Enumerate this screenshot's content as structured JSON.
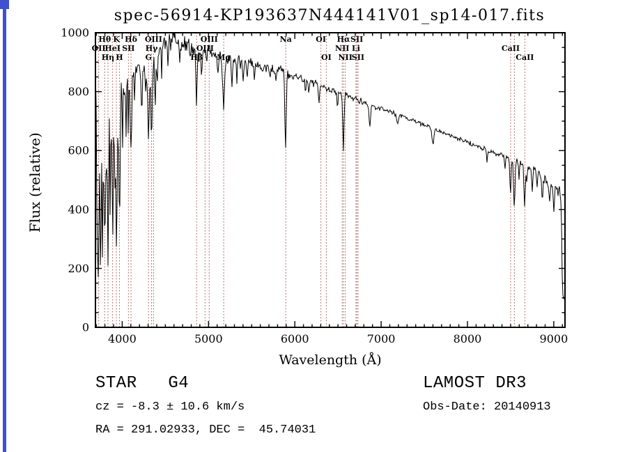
{
  "page": {
    "background": "#ffffff",
    "accent_color": "#3f51d1"
  },
  "metadata": {
    "object_type": "STAR   G4",
    "survey": "LAMOST DR3",
    "cz": "cz = -8.3 ± 10.6 km/s",
    "obs_date": "Obs-Date: 20140913",
    "coords": "RA = 291.02933, DEC =  45.74031"
  },
  "chart_data": {
    "type": "line",
    "title": "spec-56914-KP193637N444141V01_sp14-017.fits",
    "xlabel": "Wavelength (Å)",
    "ylabel": "Flux (relative)",
    "xlim": [
      3690,
      9130
    ],
    "ylim": [
      0,
      1000
    ],
    "x_major_ticks": [
      4000,
      5000,
      6000,
      7000,
      8000,
      9000
    ],
    "x_minor_step": 100,
    "y_major_ticks": [
      0,
      200,
      400,
      600,
      800,
      1000
    ],
    "y_minor_step": 50,
    "grid": false,
    "legend": null,
    "axis_color": "#000000",
    "spectrum_color": "#000000",
    "marker_color": "#a04545",
    "label_color": "#000000",
    "spectral_lines": [
      {
        "wavelength": 3727,
        "label": "OII",
        "row": 2
      },
      {
        "wavelength": 3798,
        "label": "Hθ",
        "row": 1
      },
      {
        "wavelength": 3835,
        "label": "Hη",
        "row": 3
      },
      {
        "wavelength": 3889,
        "label": "HeI",
        "row": 2
      },
      {
        "wavelength": 3933,
        "label": "K",
        "row": 1
      },
      {
        "wavelength": 3968,
        "label": "H",
        "row": 3
      },
      {
        "wavelength": 4072,
        "label": "SII",
        "row": 2
      },
      {
        "wavelength": 4102,
        "label": "Hδ",
        "row": 1
      },
      {
        "wavelength": 4305,
        "label": "G",
        "row": 3
      },
      {
        "wavelength": 4340,
        "label": "Hγ",
        "row": 2
      },
      {
        "wavelength": 4363,
        "label": "OIII",
        "row": 1
      },
      {
        "wavelength": 4862,
        "label": "Hβ",
        "row": 3
      },
      {
        "wavelength": 4960,
        "label": "OIII",
        "row": 2
      },
      {
        "wavelength": 5008,
        "label": "OIII",
        "row": 1
      },
      {
        "wavelength": 5176,
        "label": "Mg",
        "row": 3
      },
      {
        "wavelength": 5895,
        "label": "Na",
        "row": 1
      },
      {
        "wavelength": 6302,
        "label": "OI",
        "row": 1
      },
      {
        "wavelength": 6365,
        "label": "OI",
        "row": 3
      },
      {
        "wavelength": 6549,
        "label": "NII",
        "row": 2
      },
      {
        "wavelength": 6564,
        "label": "Hα",
        "row": 1
      },
      {
        "wavelength": 6585,
        "label": "NII",
        "row": 3
      },
      {
        "wavelength": 6708,
        "label": "Li",
        "row": 2
      },
      {
        "wavelength": 6718,
        "label": "SII",
        "row": 1
      },
      {
        "wavelength": 6732,
        "label": "SII",
        "row": 3
      },
      {
        "wavelength": 8500,
        "label": "CaII",
        "row": 2
      },
      {
        "wavelength": 8544,
        "label": "",
        "row": 2
      },
      {
        "wavelength": 8665,
        "label": "CaII",
        "row": 3
      }
    ],
    "continuum": [
      [
        3694,
        760
      ],
      [
        3700,
        620
      ],
      [
        3710,
        545
      ],
      [
        3725,
        560
      ],
      [
        3740,
        565
      ],
      [
        3760,
        590
      ],
      [
        3780,
        620
      ],
      [
        3800,
        650
      ],
      [
        3820,
        665
      ],
      [
        3845,
        680
      ],
      [
        3870,
        695
      ],
      [
        3900,
        715
      ],
      [
        3935,
        705
      ],
      [
        3965,
        705
      ],
      [
        3990,
        770
      ],
      [
        4010,
        800
      ],
      [
        4040,
        825
      ],
      [
        4080,
        845
      ],
      [
        4120,
        860
      ],
      [
        4160,
        865
      ],
      [
        4200,
        870
      ],
      [
        4240,
        880
      ],
      [
        4280,
        878
      ],
      [
        4320,
        876
      ],
      [
        4360,
        882
      ],
      [
        4400,
        915
      ],
      [
        4440,
        945
      ],
      [
        4480,
        960
      ],
      [
        4520,
        965
      ],
      [
        4560,
        970
      ],
      [
        4600,
        972
      ],
      [
        4650,
        970
      ],
      [
        4700,
        962
      ],
      [
        4760,
        952
      ],
      [
        4820,
        946
      ],
      [
        4880,
        938
      ],
      [
        4940,
        934
      ],
      [
        5000,
        930
      ],
      [
        5060,
        925
      ],
      [
        5120,
        918
      ],
      [
        5180,
        912
      ],
      [
        5240,
        910
      ],
      [
        5300,
        906
      ],
      [
        5360,
        903
      ],
      [
        5420,
        900
      ],
      [
        5480,
        896
      ],
      [
        5540,
        892
      ],
      [
        5600,
        888
      ],
      [
        5660,
        884
      ],
      [
        5720,
        880
      ],
      [
        5780,
        876
      ],
      [
        5840,
        872
      ],
      [
        5900,
        862
      ],
      [
        5960,
        855
      ],
      [
        6020,
        849
      ],
      [
        6080,
        843
      ],
      [
        6140,
        837
      ],
      [
        6200,
        831
      ],
      [
        6260,
        824
      ],
      [
        6320,
        816
      ],
      [
        6380,
        809
      ],
      [
        6440,
        803
      ],
      [
        6500,
        797
      ],
      [
        6560,
        791
      ],
      [
        6620,
        784
      ],
      [
        6680,
        778
      ],
      [
        6740,
        772
      ],
      [
        6800,
        766
      ],
      [
        6860,
        758
      ],
      [
        6920,
        750
      ],
      [
        6980,
        743
      ],
      [
        7040,
        737
      ],
      [
        7100,
        731
      ],
      [
        7160,
        725
      ],
      [
        7220,
        719
      ],
      [
        7280,
        712
      ],
      [
        7340,
        705
      ],
      [
        7400,
        698
      ],
      [
        7460,
        691
      ],
      [
        7520,
        684
      ],
      [
        7580,
        677
      ],
      [
        7640,
        670
      ],
      [
        7700,
        663
      ],
      [
        7760,
        656
      ],
      [
        7820,
        649
      ],
      [
        7880,
        642
      ],
      [
        7940,
        635
      ],
      [
        8000,
        628
      ],
      [
        8060,
        621
      ],
      [
        8120,
        614
      ],
      [
        8180,
        607
      ],
      [
        8240,
        600
      ],
      [
        8300,
        594
      ],
      [
        8360,
        588
      ],
      [
        8420,
        582
      ],
      [
        8480,
        576
      ],
      [
        8540,
        568
      ],
      [
        8600,
        560
      ],
      [
        8660,
        553
      ],
      [
        8720,
        545
      ],
      [
        8780,
        535
      ],
      [
        8840,
        520
      ],
      [
        8900,
        500
      ],
      [
        8950,
        480
      ],
      [
        9000,
        468
      ],
      [
        9040,
        462
      ],
      [
        9070,
        455
      ],
      [
        9085,
        442
      ],
      [
        9092,
        300
      ],
      [
        9100,
        130
      ],
      [
        9110,
        95
      ],
      [
        9130,
        90
      ]
    ],
    "absorption_features": [
      [
        3715,
        300,
        5
      ],
      [
        3727,
        280,
        6
      ],
      [
        3750,
        430,
        5
      ],
      [
        3770,
        350,
        5
      ],
      [
        3798,
        420,
        6
      ],
      [
        3820,
        200,
        4
      ],
      [
        3835,
        470,
        6
      ],
      [
        3860,
        250,
        4
      ],
      [
        3889,
        420,
        6
      ],
      [
        3912,
        200,
        4
      ],
      [
        3933,
        420,
        7
      ],
      [
        3968,
        390,
        7
      ],
      [
        4005,
        150,
        4
      ],
      [
        4045,
        160,
        5
      ],
      [
        4072,
        140,
        5
      ],
      [
        4102,
        255,
        8
      ],
      [
        4144,
        120,
        5
      ],
      [
        4226,
        170,
        6
      ],
      [
        4271,
        120,
        5
      ],
      [
        4305,
        230,
        9
      ],
      [
        4340,
        215,
        7
      ],
      [
        4383,
        150,
        5
      ],
      [
        4405,
        100,
        5
      ],
      [
        4457,
        80,
        5
      ],
      [
        4531,
        90,
        5
      ],
      [
        4668,
        90,
        5
      ],
      [
        4861,
        195,
        7
      ],
      [
        4920,
        70,
        5
      ],
      [
        5110,
        70,
        5
      ],
      [
        5176,
        165,
        11
      ],
      [
        5270,
        100,
        6
      ],
      [
        5328,
        70,
        5
      ],
      [
        5404,
        60,
        5
      ],
      [
        5446,
        60,
        4
      ],
      [
        5530,
        50,
        5
      ],
      [
        5711,
        40,
        5
      ],
      [
        5782,
        40,
        4
      ],
      [
        5893,
        255,
        8
      ],
      [
        6122,
        50,
        5
      ],
      [
        6162,
        50,
        5
      ],
      [
        6280,
        60,
        6
      ],
      [
        6494,
        60,
        6
      ],
      [
        6563,
        195,
        7
      ],
      [
        6870,
        75,
        9
      ],
      [
        7190,
        40,
        8
      ],
      [
        7600,
        55,
        10
      ],
      [
        8227,
        40,
        6
      ],
      [
        8433,
        40,
        6
      ],
      [
        8498,
        115,
        7
      ],
      [
        8542,
        160,
        8
      ],
      [
        8598,
        50,
        5
      ],
      [
        8662,
        145,
        8
      ],
      [
        8688,
        60,
        5
      ],
      [
        8750,
        80,
        6
      ],
      [
        8806,
        60,
        5
      ],
      [
        8866,
        90,
        6
      ],
      [
        8950,
        70,
        5
      ],
      [
        9000,
        80,
        5
      ]
    ],
    "noise_profile": [
      [
        3694,
        150
      ],
      [
        3750,
        150
      ],
      [
        3850,
        130
      ],
      [
        3950,
        110
      ],
      [
        4050,
        70
      ],
      [
        4200,
        55
      ],
      [
        4400,
        46
      ],
      [
        4600,
        42
      ],
      [
        4800,
        40
      ],
      [
        5000,
        32
      ],
      [
        5200,
        28
      ],
      [
        5500,
        24
      ],
      [
        5800,
        20
      ],
      [
        6100,
        17
      ],
      [
        6400,
        15
      ],
      [
        6700,
        13
      ],
      [
        7000,
        11
      ],
      [
        7400,
        9
      ],
      [
        7800,
        9
      ],
      [
        8200,
        10
      ],
      [
        8500,
        12
      ],
      [
        8800,
        16
      ],
      [
        9000,
        22
      ],
      [
        9130,
        28
      ]
    ],
    "noise_seed": 20140913
  }
}
